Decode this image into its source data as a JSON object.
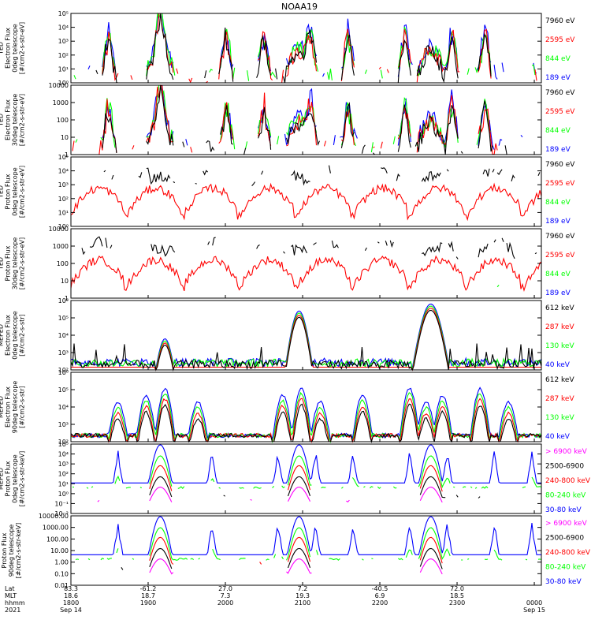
{
  "title": "NOAA19",
  "colors": {
    "black": "#000000",
    "red": "#ff0000",
    "green": "#00ff00",
    "blue": "#0000ff",
    "magenta": "#ff00ff"
  },
  "chart_data": [
    {
      "type": "line",
      "ylabel": [
        "TED",
        "Electron Flux",
        "0deg telescope",
        "[#/cm2-s-str-eV]"
      ],
      "scale": "log",
      "ylim": [
        1,
        100000
      ],
      "yticks": [
        "10⁰",
        "10¹",
        "10²",
        "10³",
        "10⁴",
        "10⁵"
      ],
      "legend": [
        {
          "label": "7960 eV",
          "color": "#000000"
        },
        {
          "label": "2595 eV",
          "color": "#ff0000"
        },
        {
          "label": "844 eV",
          "color": "#00ff00"
        },
        {
          "label": "189 eV",
          "color": "#0000ff"
        }
      ]
    },
    {
      "type": "line",
      "ylabel": [
        "TED",
        "Electron Flux",
        "30deg telescope",
        "[#/cm2-s-str-eV]"
      ],
      "scale": "log",
      "ylim": [
        1,
        10000
      ],
      "yticks": [
        "1",
        "10",
        "100",
        "1000",
        "10000"
      ],
      "legend": [
        {
          "label": "7960 eV",
          "color": "#000000"
        },
        {
          "label": "2595 eV",
          "color": "#ff0000"
        },
        {
          "label": "844 eV",
          "color": "#00ff00"
        },
        {
          "label": "189 eV",
          "color": "#0000ff"
        }
      ]
    },
    {
      "type": "line",
      "ylabel": [
        "TED",
        "Proton Flux",
        "0deg telescope",
        "[#/cm2-s-str-eV]"
      ],
      "scale": "log",
      "ylim": [
        1,
        100000
      ],
      "yticks": [
        "10⁰",
        "10¹",
        "10²",
        "10³",
        "10⁴",
        "10⁵"
      ],
      "legend": [
        {
          "label": "7960 eV",
          "color": "#000000"
        },
        {
          "label": "2595 eV",
          "color": "#ff0000"
        },
        {
          "label": "844 eV",
          "color": "#00ff00"
        },
        {
          "label": "189 eV",
          "color": "#0000ff"
        }
      ]
    },
    {
      "type": "line",
      "ylabel": [
        "TED",
        "Proton Flux",
        "30deg telescope",
        "[#/cm2-s-str-eV]"
      ],
      "scale": "log",
      "ylim": [
        1,
        10000
      ],
      "yticks": [
        "1",
        "10",
        "100",
        "1000",
        "10000"
      ],
      "legend": [
        {
          "label": "7960 eV",
          "color": "#000000"
        },
        {
          "label": "2595 eV",
          "color": "#ff0000"
        },
        {
          "label": "844 eV",
          "color": "#00ff00"
        },
        {
          "label": "189 eV",
          "color": "#0000ff"
        }
      ]
    },
    {
      "type": "line",
      "ylabel": [
        "MEPED",
        "Electron Flux",
        "0deg telescope",
        "[#/cm2-s-str]"
      ],
      "scale": "log",
      "ylim": [
        100,
        1000000
      ],
      "yticks": [
        "10²",
        "10³",
        "10⁴",
        "10⁵",
        "10⁶"
      ],
      "legend": [
        {
          "label": "612 keV",
          "color": "#000000"
        },
        {
          "label": "287 keV",
          "color": "#ff0000"
        },
        {
          "label": "130 keV",
          "color": "#00ff00"
        },
        {
          "label": "40 keV",
          "color": "#0000ff"
        }
      ]
    },
    {
      "type": "line",
      "ylabel": [
        "MEPED",
        "Electron Flux",
        "90deg telescope",
        "[#/cm2-s-str]"
      ],
      "scale": "log",
      "ylim": [
        100,
        1000000
      ],
      "yticks": [
        "10²",
        "10³",
        "10⁴",
        "10⁵",
        "10⁶"
      ],
      "legend": [
        {
          "label": "612 keV",
          "color": "#000000"
        },
        {
          "label": "287 keV",
          "color": "#ff0000"
        },
        {
          "label": "130 keV",
          "color": "#00ff00"
        },
        {
          "label": "40 keV",
          "color": "#0000ff"
        }
      ]
    },
    {
      "type": "line",
      "ylabel": [
        "MEPED",
        "Proton Flux",
        "0deg telescope",
        "[#/cm2-s-str-keV]"
      ],
      "scale": "log",
      "ylim": [
        0.01,
        100000
      ],
      "yticks": [
        "10⁻²",
        "10⁻¹",
        "10⁰",
        "10¹",
        "10²",
        "10³",
        "10⁴",
        "10⁵"
      ],
      "legend": [
        {
          "label": "> 6900 keV",
          "color": "#ff00ff"
        },
        {
          "label": "2500-6900",
          "color": "#000000"
        },
        {
          "label": "240-800 keV",
          "color": "#ff0000"
        },
        {
          "label": "80-240 keV",
          "color": "#00ff00"
        },
        {
          "label": "30-80 keV",
          "color": "#0000ff"
        }
      ]
    },
    {
      "type": "line",
      "ylabel": [
        "Proton Flux",
        "90deg telescope",
        "[#/cm2-s-str-keV]"
      ],
      "scale": "log",
      "ylim": [
        0.01,
        10000
      ],
      "yticks": [
        "0.01",
        "0.10",
        "1.00",
        "10.00",
        "100.00",
        "1000.00",
        "10000.00"
      ],
      "legend": [
        {
          "label": "> 6900 keV",
          "color": "#ff00ff"
        },
        {
          "label": "2500-6900",
          "color": "#000000"
        },
        {
          "label": "240-800 keV",
          "color": "#ff0000"
        },
        {
          "label": "80-240 keV",
          "color": "#00ff00"
        },
        {
          "label": "30-80 keV",
          "color": "#0000ff"
        }
      ]
    }
  ],
  "xaxis": {
    "row_labels": [
      "Lat",
      "MLT",
      "hhmm",
      "2021"
    ],
    "columns": [
      {
        "values": [
          "83.3",
          "18.6",
          "1800",
          "Sep 14"
        ]
      },
      {
        "values": [
          "-61.2",
          "18.7",
          "1900",
          ""
        ]
      },
      {
        "values": [
          "27.0",
          "7.3",
          "2000",
          ""
        ]
      },
      {
        "values": [
          "7.2",
          "19.3",
          "2100",
          ""
        ]
      },
      {
        "values": [
          "-40.5",
          "6.9",
          "2200",
          ""
        ]
      },
      {
        "values": [
          "72.0",
          "18.5",
          "2300",
          ""
        ]
      },
      {
        "values": [
          "",
          "",
          "0000",
          "Sep 15"
        ]
      }
    ]
  }
}
